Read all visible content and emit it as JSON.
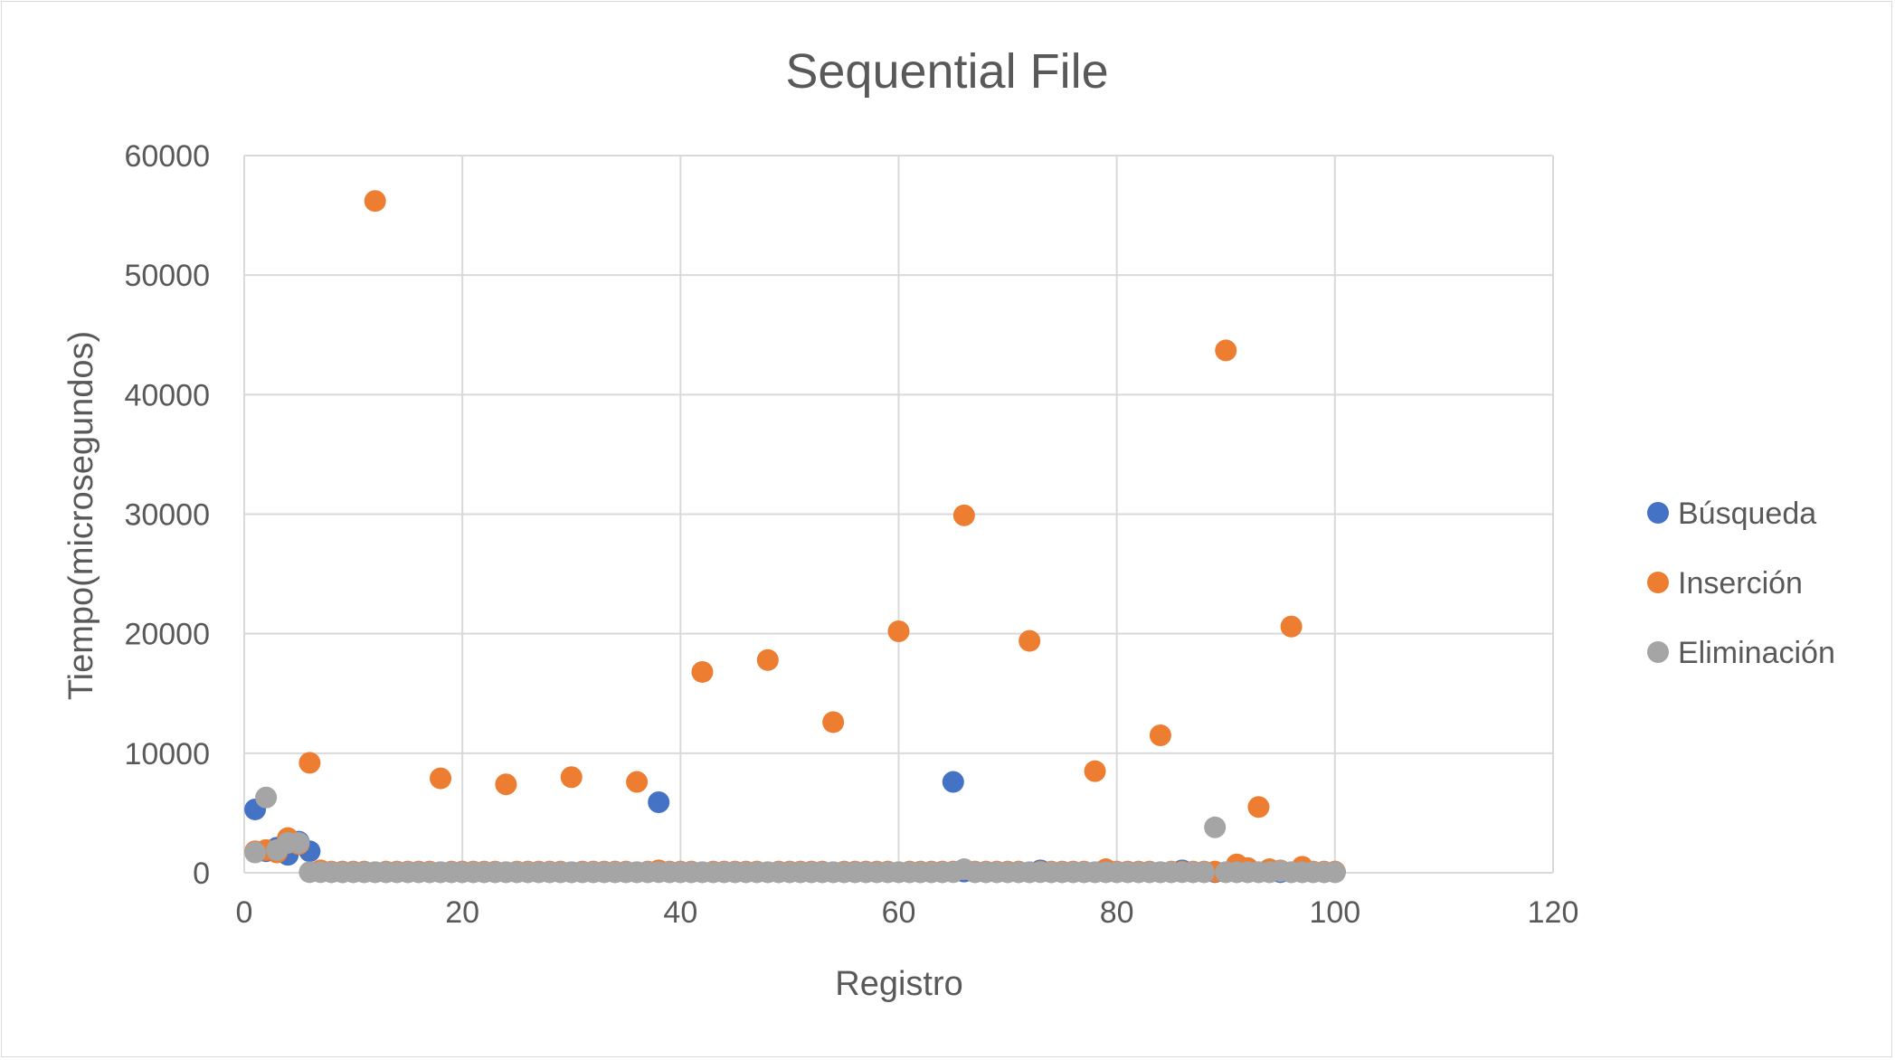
{
  "chart_data": {
    "type": "scatter",
    "title": "Sequential File",
    "xlabel": "Registro",
    "ylabel": "Tiempo(microsegundos)",
    "xlim": [
      0,
      120
    ],
    "ylim": [
      0,
      60000
    ],
    "x_ticks": [
      "0",
      "20",
      "40",
      "60",
      "80",
      "100",
      "120"
    ],
    "y_ticks": [
      "0",
      "10000",
      "20000",
      "30000",
      "40000",
      "50000",
      "60000"
    ],
    "grid": true,
    "legend_position": "right",
    "series": [
      {
        "name": "Búsqueda",
        "color": "#4472C4",
        "points": [
          [
            1,
            5300
          ],
          [
            2,
            1800
          ],
          [
            3,
            2100
          ],
          [
            4,
            1500
          ],
          [
            5,
            2600
          ],
          [
            6,
            1800
          ],
          [
            7,
            100
          ],
          [
            8,
            50
          ],
          [
            9,
            50
          ],
          [
            10,
            50
          ],
          [
            11,
            50
          ],
          [
            12,
            50
          ],
          [
            13,
            50
          ],
          [
            14,
            50
          ],
          [
            15,
            50
          ],
          [
            16,
            50
          ],
          [
            17,
            50
          ],
          [
            18,
            50
          ],
          [
            19,
            50
          ],
          [
            20,
            50
          ],
          [
            21,
            50
          ],
          [
            22,
            50
          ],
          [
            23,
            50
          ],
          [
            24,
            50
          ],
          [
            25,
            50
          ],
          [
            26,
            50
          ],
          [
            27,
            50
          ],
          [
            28,
            50
          ],
          [
            29,
            50
          ],
          [
            30,
            50
          ],
          [
            31,
            50
          ],
          [
            32,
            50
          ],
          [
            33,
            50
          ],
          [
            34,
            50
          ],
          [
            35,
            50
          ],
          [
            36,
            50
          ],
          [
            37,
            50
          ],
          [
            38,
            5900
          ],
          [
            39,
            50
          ],
          [
            40,
            50
          ],
          [
            41,
            50
          ],
          [
            42,
            50
          ],
          [
            43,
            50
          ],
          [
            44,
            50
          ],
          [
            45,
            50
          ],
          [
            46,
            50
          ],
          [
            47,
            50
          ],
          [
            48,
            50
          ],
          [
            49,
            50
          ],
          [
            50,
            50
          ],
          [
            51,
            50
          ],
          [
            52,
            50
          ],
          [
            53,
            50
          ],
          [
            54,
            50
          ],
          [
            55,
            50
          ],
          [
            56,
            50
          ],
          [
            57,
            50
          ],
          [
            58,
            50
          ],
          [
            59,
            50
          ],
          [
            60,
            50
          ],
          [
            61,
            50
          ],
          [
            62,
            50
          ],
          [
            63,
            50
          ],
          [
            64,
            50
          ],
          [
            65,
            7600
          ],
          [
            66,
            100
          ],
          [
            67,
            50
          ],
          [
            68,
            50
          ],
          [
            69,
            50
          ],
          [
            70,
            50
          ],
          [
            71,
            50
          ],
          [
            72,
            50
          ],
          [
            73,
            200
          ],
          [
            74,
            50
          ],
          [
            75,
            50
          ],
          [
            76,
            50
          ],
          [
            77,
            50
          ],
          [
            78,
            50
          ],
          [
            79,
            50
          ],
          [
            80,
            50
          ],
          [
            81,
            50
          ],
          [
            82,
            50
          ],
          [
            83,
            50
          ],
          [
            84,
            50
          ],
          [
            85,
            50
          ],
          [
            86,
            200
          ],
          [
            87,
            50
          ],
          [
            88,
            50
          ],
          [
            89,
            50
          ],
          [
            90,
            50
          ],
          [
            91,
            50
          ],
          [
            92,
            50
          ],
          [
            93,
            50
          ],
          [
            94,
            50
          ],
          [
            95,
            50
          ],
          [
            96,
            50
          ],
          [
            97,
            50
          ],
          [
            98,
            50
          ],
          [
            99,
            50
          ],
          [
            100,
            50
          ]
        ]
      },
      {
        "name": "Inserción",
        "color": "#ED7D31",
        "points": [
          [
            1,
            1800
          ],
          [
            2,
            1900
          ],
          [
            3,
            1700
          ],
          [
            4,
            2900
          ],
          [
            5,
            2400
          ],
          [
            6,
            9200
          ],
          [
            7,
            200
          ],
          [
            8,
            100
          ],
          [
            9,
            100
          ],
          [
            10,
            100
          ],
          [
            11,
            100
          ],
          [
            12,
            56200
          ],
          [
            13,
            100
          ],
          [
            14,
            100
          ],
          [
            15,
            100
          ],
          [
            16,
            100
          ],
          [
            17,
            100
          ],
          [
            18,
            7900
          ],
          [
            19,
            100
          ],
          [
            20,
            100
          ],
          [
            21,
            100
          ],
          [
            22,
            100
          ],
          [
            23,
            100
          ],
          [
            24,
            7400
          ],
          [
            25,
            100
          ],
          [
            26,
            100
          ],
          [
            27,
            100
          ],
          [
            28,
            100
          ],
          [
            29,
            100
          ],
          [
            30,
            8000
          ],
          [
            31,
            100
          ],
          [
            32,
            100
          ],
          [
            33,
            100
          ],
          [
            34,
            100
          ],
          [
            35,
            100
          ],
          [
            36,
            7600
          ],
          [
            37,
            100
          ],
          [
            38,
            200
          ],
          [
            39,
            100
          ],
          [
            40,
            100
          ],
          [
            41,
            100
          ],
          [
            42,
            16800
          ],
          [
            43,
            100
          ],
          [
            44,
            100
          ],
          [
            45,
            100
          ],
          [
            46,
            100
          ],
          [
            47,
            100
          ],
          [
            48,
            17800
          ],
          [
            49,
            100
          ],
          [
            50,
            100
          ],
          [
            51,
            100
          ],
          [
            52,
            100
          ],
          [
            53,
            100
          ],
          [
            54,
            12600
          ],
          [
            55,
            100
          ],
          [
            56,
            100
          ],
          [
            57,
            100
          ],
          [
            58,
            100
          ],
          [
            59,
            100
          ],
          [
            60,
            20200
          ],
          [
            61,
            100
          ],
          [
            62,
            100
          ],
          [
            63,
            100
          ],
          [
            64,
            100
          ],
          [
            65,
            100
          ],
          [
            66,
            29900
          ],
          [
            67,
            100
          ],
          [
            68,
            100
          ],
          [
            69,
            100
          ],
          [
            70,
            100
          ],
          [
            71,
            100
          ],
          [
            72,
            19400
          ],
          [
            73,
            100
          ],
          [
            74,
            100
          ],
          [
            75,
            100
          ],
          [
            76,
            100
          ],
          [
            77,
            100
          ],
          [
            78,
            8500
          ],
          [
            79,
            300
          ],
          [
            80,
            100
          ],
          [
            81,
            100
          ],
          [
            82,
            100
          ],
          [
            83,
            100
          ],
          [
            84,
            11500
          ],
          [
            85,
            100
          ],
          [
            86,
            100
          ],
          [
            87,
            100
          ],
          [
            88,
            100
          ],
          [
            89,
            100
          ],
          [
            90,
            43700
          ],
          [
            91,
            700
          ],
          [
            92,
            400
          ],
          [
            93,
            5500
          ],
          [
            94,
            300
          ],
          [
            95,
            200
          ],
          [
            96,
            20600
          ],
          [
            97,
            500
          ],
          [
            98,
            100
          ],
          [
            99,
            100
          ],
          [
            100,
            100
          ]
        ]
      },
      {
        "name": "Eliminación",
        "color": "#A5A5A5",
        "points": [
          [
            1,
            1700
          ],
          [
            2,
            6300
          ],
          [
            3,
            1900
          ],
          [
            4,
            2500
          ],
          [
            5,
            2500
          ],
          [
            6,
            50
          ],
          [
            7,
            50
          ],
          [
            8,
            50
          ],
          [
            9,
            50
          ],
          [
            10,
            50
          ],
          [
            11,
            50
          ],
          [
            12,
            50
          ],
          [
            13,
            50
          ],
          [
            14,
            50
          ],
          [
            15,
            50
          ],
          [
            16,
            50
          ],
          [
            17,
            50
          ],
          [
            18,
            50
          ],
          [
            19,
            50
          ],
          [
            20,
            50
          ],
          [
            21,
            50
          ],
          [
            22,
            50
          ],
          [
            23,
            50
          ],
          [
            24,
            50
          ],
          [
            25,
            50
          ],
          [
            26,
            50
          ],
          [
            27,
            50
          ],
          [
            28,
            50
          ],
          [
            29,
            50
          ],
          [
            30,
            50
          ],
          [
            31,
            50
          ],
          [
            32,
            50
          ],
          [
            33,
            50
          ],
          [
            34,
            50
          ],
          [
            35,
            50
          ],
          [
            36,
            50
          ],
          [
            37,
            50
          ],
          [
            38,
            50
          ],
          [
            39,
            50
          ],
          [
            40,
            50
          ],
          [
            41,
            50
          ],
          [
            42,
            50
          ],
          [
            43,
            50
          ],
          [
            44,
            50
          ],
          [
            45,
            50
          ],
          [
            46,
            50
          ],
          [
            47,
            50
          ],
          [
            48,
            50
          ],
          [
            49,
            50
          ],
          [
            50,
            50
          ],
          [
            51,
            50
          ],
          [
            52,
            50
          ],
          [
            53,
            50
          ],
          [
            54,
            50
          ],
          [
            55,
            50
          ],
          [
            56,
            50
          ],
          [
            57,
            50
          ],
          [
            58,
            50
          ],
          [
            59,
            50
          ],
          [
            60,
            50
          ],
          [
            61,
            50
          ],
          [
            62,
            50
          ],
          [
            63,
            50
          ],
          [
            64,
            50
          ],
          [
            65,
            50
          ],
          [
            66,
            300
          ],
          [
            67,
            50
          ],
          [
            68,
            50
          ],
          [
            69,
            50
          ],
          [
            70,
            50
          ],
          [
            71,
            50
          ],
          [
            72,
            50
          ],
          [
            73,
            50
          ],
          [
            74,
            50
          ],
          [
            75,
            50
          ],
          [
            76,
            50
          ],
          [
            77,
            50
          ],
          [
            78,
            50
          ],
          [
            79,
            50
          ],
          [
            80,
            50
          ],
          [
            81,
            50
          ],
          [
            82,
            50
          ],
          [
            83,
            50
          ],
          [
            84,
            50
          ],
          [
            85,
            50
          ],
          [
            86,
            50
          ],
          [
            87,
            50
          ],
          [
            88,
            50
          ],
          [
            89,
            3800
          ],
          [
            90,
            50
          ],
          [
            91,
            50
          ],
          [
            92,
            50
          ],
          [
            93,
            50
          ],
          [
            94,
            50
          ],
          [
            95,
            150
          ],
          [
            96,
            50
          ],
          [
            97,
            50
          ],
          [
            98,
            50
          ],
          [
            99,
            50
          ],
          [
            100,
            50
          ]
        ]
      }
    ]
  }
}
